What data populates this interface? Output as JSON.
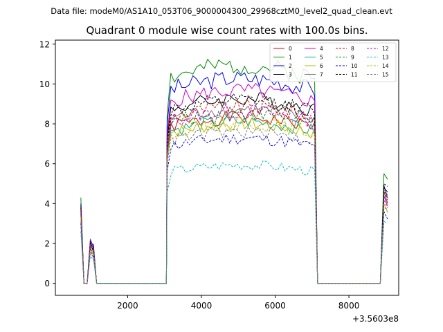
{
  "figure": {
    "suptitle": "Data file: modeM0/AS1A10_053T06_9000004300_29968cztM0_level2_quad_clean.evt",
    "title": "Quadrant 0 module wise count rates with 100.0s bins.",
    "x_offset_label": "+3.5603e8"
  },
  "chart_data": {
    "type": "line",
    "title": "Quadrant 0 module wise count rates with 100.0s bins.",
    "xlabel": "",
    "ylabel": "",
    "x_offset": 356030000,
    "xlim": [
      40,
      9350
    ],
    "ylim": [
      -0.6,
      12.2
    ],
    "xticks": [
      2000,
      4000,
      6000,
      8000
    ],
    "yticks": [
      0,
      2,
      4,
      6,
      8,
      10,
      12
    ],
    "xtick_labels": [
      "2000",
      "4000",
      "6000",
      "8000"
    ],
    "ytick_labels": [
      "0",
      "2",
      "4",
      "6",
      "8",
      "10",
      "12"
    ],
    "legend_position": "top-right",
    "segments": [
      {
        "x_start": 730,
        "x_end": 1330
      },
      {
        "x_start": 3050,
        "x_end": 7050
      },
      {
        "x_start": 7150,
        "x_end": 8850
      },
      {
        "x_start": 8950,
        "x_end": 9050
      }
    ],
    "early_profile": [
      1,
      0,
      0,
      0.53,
      0.45,
      0,
      0,
      0
    ],
    "series": [
      {
        "name": "0",
        "color": "#dd0000",
        "dash": "solid",
        "early": 3.7,
        "plateau": 8.0,
        "end": 4.6,
        "seed": 1
      },
      {
        "name": "1",
        "color": "#008800",
        "dash": "solid",
        "early": 4.3,
        "plateau": 10.5,
        "end": 5.5,
        "seed": 2
      },
      {
        "name": "2",
        "color": "#0000ee",
        "dash": "solid",
        "early": 4.0,
        "plateau": 9.9,
        "end": 4.9,
        "seed": 3
      },
      {
        "name": "3",
        "color": "#000000",
        "dash": "solid",
        "early": 3.9,
        "plateau": 8.9,
        "end": 4.8,
        "seed": 4
      },
      {
        "name": "4",
        "color": "#cc00cc",
        "dash": "solid",
        "early": 3.8,
        "plateau": 9.3,
        "end": 4.4,
        "seed": 5
      },
      {
        "name": "5",
        "color": "#00aa88",
        "dash": "solid",
        "early": 3.6,
        "plateau": 7.8,
        "end": 4.3,
        "seed": 6
      },
      {
        "name": "6",
        "color": "#bbbb00",
        "dash": "solid",
        "early": 3.4,
        "plateau": 7.7,
        "end": 4.0,
        "seed": 7
      },
      {
        "name": "7",
        "color": "#777777",
        "dash": "solid",
        "early": 3.5,
        "plateau": 8.4,
        "end": 4.5,
        "seed": 8
      },
      {
        "name": "8",
        "color": "#dd0000",
        "dash": "dashed",
        "early": 3.7,
        "plateau": 8.5,
        "end": 4.7,
        "seed": 9
      },
      {
        "name": "9",
        "color": "#008800",
        "dash": "dashed",
        "early": 3.5,
        "plateau": 8.2,
        "end": 4.6,
        "seed": 10
      },
      {
        "name": "10",
        "color": "#0000ee",
        "dash": "dashed",
        "early": 3.0,
        "plateau": 7.0,
        "end": 3.6,
        "seed": 11
      },
      {
        "name": "11",
        "color": "#000000",
        "dash": "dashed",
        "early": 3.8,
        "plateau": 8.8,
        "end": 5.0,
        "seed": 12
      },
      {
        "name": "12",
        "color": "#cc00cc",
        "dash": "dashed",
        "early": 3.6,
        "plateau": 8.3,
        "end": 4.2,
        "seed": 13
      },
      {
        "name": "13",
        "color": "#00bbcc",
        "dash": "dashed",
        "early": 2.6,
        "plateau": 5.7,
        "end": 3.1,
        "seed": 14
      },
      {
        "name": "14",
        "color": "#bbbb00",
        "dash": "dashed",
        "early": 3.3,
        "plateau": 7.7,
        "end": 4.0,
        "seed": 15
      },
      {
        "name": "15",
        "color": "#777777",
        "dash": "dashed",
        "early": 3.1,
        "plateau": 7.3,
        "end": 3.8,
        "seed": 16
      }
    ]
  }
}
